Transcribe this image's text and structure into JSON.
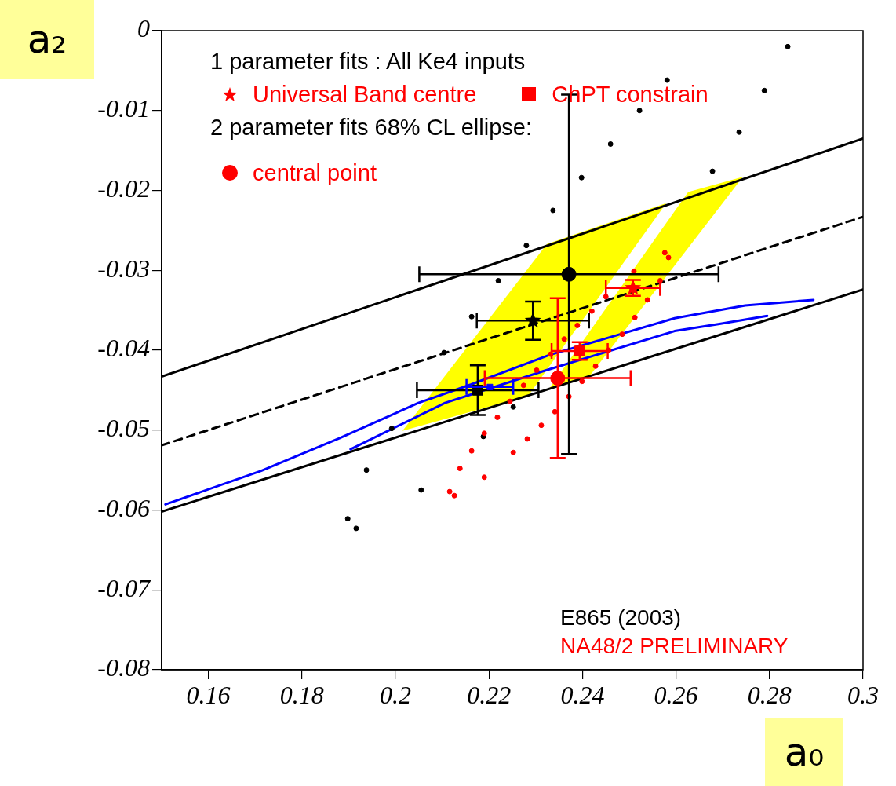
{
  "chart_data": {
    "type": "scatter",
    "xlabel": "a₀",
    "ylabel": "a₂",
    "legend": "top left",
    "annotations": [
      "1 parameter fits :  All Ke4 inputs",
      "2 parameter fits 68% CL ellipse:",
      "E865 (2003)",
      "NA48/2 PRELIMINARY"
    ],
    "xlim": [
      0.15,
      0.3
    ],
    "ylim": [
      -0.08,
      0
    ],
    "xticks": [
      0.16,
      0.18,
      0.2,
      0.22,
      0.24,
      0.26,
      0.28,
      0.3
    ],
    "yticks": [
      -0.08,
      -0.07,
      -0.06,
      -0.05,
      -0.04,
      -0.03,
      -0.02,
      -0.01,
      0
    ],
    "series": [
      {
        "type": "area",
        "color": "#ffff00",
        "x": [
          0.2015,
          0.2284,
          0.2579,
          0.2324
        ],
        "values": [
          -0.0501,
          -0.0457,
          -0.0216,
          -0.0267
        ]
      },
      {
        "type": "area",
        "color": "#ffff00",
        "x": [
          0.2329,
          0.2413,
          0.2743,
          0.2626
        ],
        "values": [
          -0.0448,
          -0.0434,
          -0.0183,
          -0.0202
        ]
      },
      {
        "type": "line",
        "color": "#000000",
        "line_style": "solid",
        "x": [
          0.15,
          0.3
        ],
        "values": [
          -0.0433,
          -0.0135
        ]
      },
      {
        "type": "line",
        "color": "#000000",
        "line_style": "solid",
        "x": [
          0.15,
          0.3
        ],
        "values": [
          -0.0602,
          -0.0324
        ]
      },
      {
        "type": "line",
        "color": "#000000",
        "line_style": "dashed",
        "x": [
          0.15,
          0.3
        ],
        "values": [
          -0.0519,
          -0.0233
        ]
      },
      {
        "type": "line",
        "color": "#0000ff",
        "line_style": "solid",
        "x": [
          0.1508,
          0.1713,
          0.1881,
          0.2049,
          0.2161,
          0.2329,
          0.2597,
          0.2748,
          0.2894
        ],
        "values": [
          -0.0593,
          -0.0551,
          -0.051,
          -0.0466,
          -0.0443,
          -0.0406,
          -0.036,
          -0.0344,
          -0.0337
        ]
      },
      {
        "type": "line",
        "color": "#0000ff",
        "line_style": "solid",
        "x": [
          0.1904,
          0.2106,
          0.2317,
          0.2597,
          0.2693,
          0.2795
        ],
        "values": [
          -0.0524,
          -0.0466,
          -0.0426,
          -0.0376,
          -0.0367,
          -0.0357
        ]
      },
      {
        "type": "scatter",
        "color": "#000000",
        "marker": "circle",
        "x": [
          0.2839,
          0.2581,
          0.2789,
          0.2522,
          0.2735,
          0.246,
          0.2678,
          0.2398,
          0.2337,
          0.228,
          0.222,
          0.2163,
          0.2104,
          0.1992,
          0.1938,
          0.2055,
          0.1898,
          0.1916,
          0.2188,
          0.2252
        ],
        "values": [
          -0.002,
          -0.0062,
          -0.0075,
          -0.01,
          -0.0127,
          -0.0142,
          -0.0176,
          -0.0184,
          -0.0225,
          -0.0269,
          -0.0313,
          -0.0358,
          -0.0403,
          -0.0498,
          -0.055,
          -0.0575,
          -0.0611,
          -0.0623,
          -0.0508,
          -0.0471
        ]
      },
      {
        "type": "scatter",
        "color": "#ff0000",
        "marker": "circle",
        "x": [
          0.2576,
          0.2584,
          0.251,
          0.2566,
          0.245,
          0.2539,
          0.242,
          0.2512,
          0.2389,
          0.2361,
          0.2485,
          0.2332,
          0.2456,
          0.2428,
          0.2302,
          0.2399,
          0.2274,
          0.2371,
          0.2245,
          0.2341,
          0.2218,
          0.2312,
          0.219,
          0.2282,
          0.2163,
          0.2252,
          0.2138,
          0.219,
          0.2116,
          0.2126
        ],
        "values": [
          -0.0278,
          -0.0284,
          -0.0301,
          -0.0313,
          -0.0333,
          -0.0337,
          -0.0351,
          -0.0359,
          -0.0369,
          -0.0386,
          -0.038,
          -0.0405,
          -0.04,
          -0.042,
          -0.0425,
          -0.0439,
          -0.0444,
          -0.0458,
          -0.0464,
          -0.0477,
          -0.0484,
          -0.0494,
          -0.0504,
          -0.0511,
          -0.0526,
          -0.0528,
          -0.0548,
          -0.0559,
          -0.0577,
          -0.0582
        ]
      },
      {
        "type": "scatter",
        "color": "#000000",
        "marker": "circle",
        "x": [
          0.2371
        ],
        "values": [
          -0.0305
        ],
        "errors": [
          0.0225
        ],
        "xerrors": [
          0.032
        ]
      },
      {
        "color": "#000000",
        "marker": "star",
        "x": [
          0.2294
        ],
        "values": [
          -0.0363
        ],
        "errors": [
          0.0024
        ],
        "xerrors": [
          0.012
        ]
      },
      {
        "type": "scatter",
        "color": "#000000",
        "marker": "square",
        "x": [
          0.2176
        ],
        "values": [
          -0.045
        ],
        "errors": [
          0.0031
        ],
        "xerrors": [
          0.013
        ]
      },
      {
        "color": "#0000ff",
        "marker": "square",
        "x": [
          0.2202
        ],
        "values": [
          -0.0446
        ],
        "xerrors": [
          0.005
        ]
      },
      {
        "name": "Universal Band centre",
        "color": "#ff0000",
        "marker": "star",
        "x": [
          0.2508
        ],
        "values": [
          -0.0322
        ],
        "errors": [
          0.001
        ],
        "xerrors": [
          0.0058
        ]
      },
      {
        "name": "ChPT constrain",
        "color": "#ff0000",
        "marker": "square",
        "x": [
          0.2394
        ],
        "values": [
          -0.0401
        ],
        "errors": [
          0.0011
        ],
        "xerrors": [
          0.006
        ]
      },
      {
        "name": "central point",
        "color": "#ff0000",
        "marker": "circle",
        "x": [
          0.2347
        ],
        "values": [
          -0.0435
        ],
        "errors": [
          0.01
        ],
        "xerrors": [
          0.0156
        ]
      }
    ]
  }
}
